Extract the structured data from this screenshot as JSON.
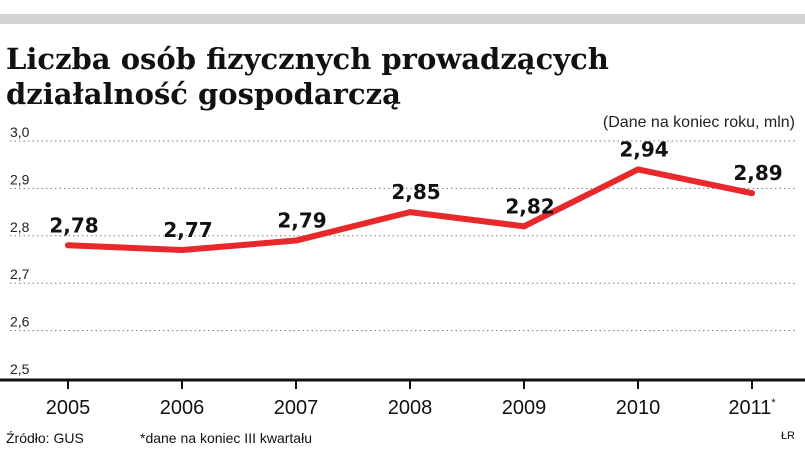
{
  "chart_data": {
    "type": "line",
    "title": "Liczba osób fizycznych prowadzących działalność gospodarczą",
    "subtitle": "(Dane na koniec roku, mln)",
    "categories": [
      "2005",
      "2006",
      "2007",
      "2008",
      "2009",
      "2010",
      "2011"
    ],
    "category_suffix": [
      "",
      "",
      "",
      "",
      "",
      "",
      "*"
    ],
    "series": [
      {
        "values": [
          2.78,
          2.77,
          2.79,
          2.85,
          2.82,
          2.94,
          2.89
        ],
        "labels": [
          "2,78",
          "2,77",
          "2,79",
          "2,85",
          "2,82",
          "2,94",
          "2,89"
        ],
        "color": "#e8282a"
      }
    ],
    "yticks": [
      2.5,
      2.6,
      2.7,
      2.8,
      2.9,
      3.0
    ],
    "ytick_labels": [
      "2,5",
      "2,6",
      "2,7",
      "2,8",
      "2,9",
      "3,0"
    ],
    "ylim": [
      2.5,
      3.0
    ],
    "grid": true,
    "xlabel": "",
    "ylabel": ""
  },
  "footer": {
    "source": "Źródło: GUS",
    "note": "*dane na koniec III kwartału",
    "credit": "ŁR"
  }
}
